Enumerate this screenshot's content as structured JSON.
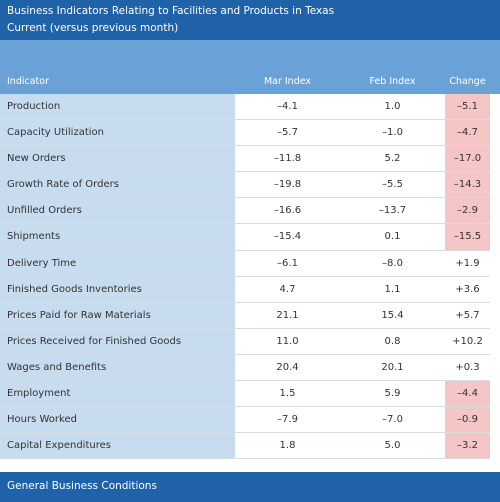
{
  "header": {
    "title": "Business Indicators Relating to Facilities and Products in Texas",
    "subtitle": "Current (versus previous month)"
  },
  "table": {
    "columns": [
      "Indicator",
      "Mar Index",
      "Feb Index",
      "Change"
    ],
    "rows": [
      [
        "Production",
        "–4.1",
        "1.0",
        "–5.1"
      ],
      [
        "Capacity Utilization",
        "–5.7",
        "–1.0",
        "–4.7"
      ],
      [
        "New Orders",
        "–11.8",
        "5.2",
        "–17.0"
      ],
      [
        "Growth Rate of Orders",
        "–19.8",
        "–5.5",
        "–14.3"
      ],
      [
        "Unfilled Orders",
        "–16.6",
        "–13.7",
        "–2.9"
      ],
      [
        "Shipments",
        "–15.4",
        "0.1",
        "–15.5"
      ],
      [
        "Delivery Time",
        "–6.1",
        "–8.0",
        "+1.9"
      ],
      [
        "Finished Goods Inventories",
        "4.7",
        "1.1",
        "+3.6"
      ],
      [
        "Prices Paid for Raw Materials",
        "21.1",
        "15.4",
        "+5.7"
      ],
      [
        "Prices Received for Finished Goods",
        "11.0",
        "0.8",
        "+10.2"
      ],
      [
        "Wages and Benefits",
        "20.4",
        "20.1",
        "+0.3"
      ],
      [
        "Employment",
        "1.5",
        "5.9",
        "–4.4"
      ],
      [
        "Hours Worked",
        "–7.9",
        "–7.0",
        "–0.9"
      ],
      [
        "Capital Expenditures",
        "1.8",
        "5.0",
        "–3.2"
      ]
    ]
  },
  "footer": {
    "section": "General Business Conditions"
  }
}
